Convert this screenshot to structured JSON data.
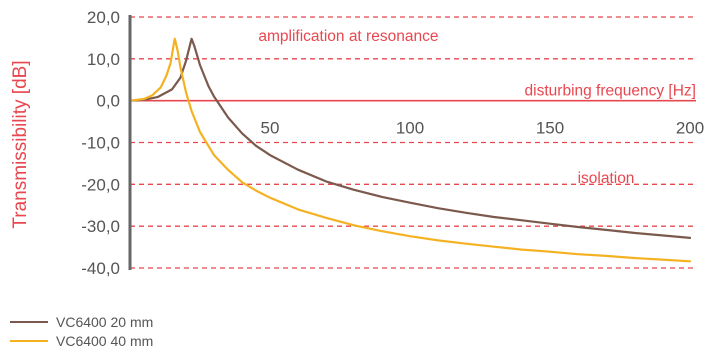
{
  "chart_data": {
    "type": "line",
    "ylabel": "Transmissibility [dB]",
    "xlabel": "disturbing frequency [Hz]",
    "xlim": [
      0,
      200
    ],
    "ylim": [
      -40,
      20
    ],
    "x_ticks": [
      {
        "value": 50,
        "label": "50"
      },
      {
        "value": 100,
        "label": "100"
      },
      {
        "value": 150,
        "label": "150"
      },
      {
        "value": 200,
        "label": "200"
      }
    ],
    "y_ticks": [
      {
        "value": 20,
        "label": "20,0"
      },
      {
        "value": 10,
        "label": "10,0"
      },
      {
        "value": 0,
        "label": "0,0"
      },
      {
        "value": -10,
        "label": "-10,0"
      },
      {
        "value": -20,
        "label": "-20,0"
      },
      {
        "value": -30,
        "label": "-30,0"
      },
      {
        "value": -40,
        "label": "-40,0"
      }
    ],
    "grid": "horizontal dashed",
    "annotations": [
      {
        "text": "amplification at resonance",
        "x": 78,
        "y": 15.5
      },
      {
        "text": "isolation",
        "x": 170,
        "y": -18.5
      }
    ],
    "series": [
      {
        "name": "VC6400 20 mm",
        "color": "#7b5a4d",
        "points": [
          [
            0,
            0
          ],
          [
            5,
            0.2
          ],
          [
            10,
            0.9
          ],
          [
            15,
            2.7
          ],
          [
            18,
            5.5
          ],
          [
            20,
            9.5
          ],
          [
            21.5,
            13.5
          ],
          [
            22,
            14.8
          ],
          [
            23,
            13
          ],
          [
            25,
            8.5
          ],
          [
            28,
            3.5
          ],
          [
            30,
            1
          ],
          [
            35,
            -4
          ],
          [
            40,
            -7.8
          ],
          [
            45,
            -10.8
          ],
          [
            50,
            -13
          ],
          [
            60,
            -16.5
          ],
          [
            70,
            -19.3
          ],
          [
            80,
            -21.3
          ],
          [
            90,
            -23
          ],
          [
            100,
            -24.4
          ],
          [
            110,
            -25.7
          ],
          [
            120,
            -26.8
          ],
          [
            130,
            -27.8
          ],
          [
            140,
            -28.6
          ],
          [
            150,
            -29.4
          ],
          [
            160,
            -30.2
          ],
          [
            170,
            -30.9
          ],
          [
            180,
            -31.6
          ],
          [
            190,
            -32.2
          ],
          [
            200,
            -32.8
          ]
        ]
      },
      {
        "name": "VC6400 40 mm",
        "color": "#f4b223",
        "points": [
          [
            0,
            0
          ],
          [
            5,
            0.4
          ],
          [
            8,
            1.3
          ],
          [
            11,
            3.2
          ],
          [
            13,
            6
          ],
          [
            14.5,
            9
          ],
          [
            15.5,
            13
          ],
          [
            16,
            14.8
          ],
          [
            17,
            12
          ],
          [
            18,
            8
          ],
          [
            20,
            2
          ],
          [
            22,
            -2.5
          ],
          [
            25,
            -7.5
          ],
          [
            30,
            -13
          ],
          [
            35,
            -16.5
          ],
          [
            40,
            -19.5
          ],
          [
            45,
            -21.5
          ],
          [
            50,
            -23.2
          ],
          [
            60,
            -26
          ],
          [
            70,
            -28
          ],
          [
            80,
            -29.8
          ],
          [
            90,
            -31.2
          ],
          [
            100,
            -32.4
          ],
          [
            110,
            -33.4
          ],
          [
            120,
            -34.2
          ],
          [
            130,
            -34.9
          ],
          [
            140,
            -35.6
          ],
          [
            150,
            -36.1
          ],
          [
            160,
            -36.7
          ],
          [
            170,
            -37.1
          ],
          [
            180,
            -37.6
          ],
          [
            190,
            -38
          ],
          [
            200,
            -38.4
          ]
        ]
      }
    ]
  }
}
